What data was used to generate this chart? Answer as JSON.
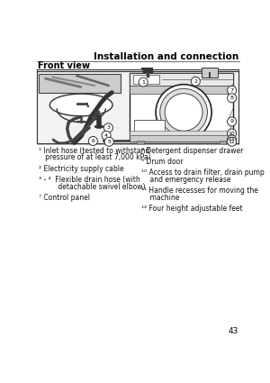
{
  "title": "Installation and connection",
  "subtitle": "Front view",
  "page_number": "43",
  "bg_color": "#ffffff",
  "title_fontsize": 7.5,
  "subtitle_fontsize": 7.0,
  "body_fontsize": 5.5,
  "left_col": [
    [
      "¹ Inlet hose (tested to withstand",
      "   pressure of at least 7,000 kPa)"
    ],
    [
      "² Electricity supply cable"
    ],
    [
      "³ - ⁴  Flexible drain hose (with",
      "         detachable swivel elbow)"
    ],
    [
      "⁷ Control panel"
    ]
  ],
  "right_col": [
    [
      "⁸ Detergent dispenser drawer"
    ],
    [
      "⁹ Drum door"
    ],
    [
      "¹⁰ Access to drain filter, drain pump",
      "    and emergency release"
    ],
    [
      "¹¹ Handle recesses for moving the",
      "    machine"
    ],
    [
      "¹² Four height adjustable feet"
    ]
  ],
  "diagram_bg": "#f2f2f2",
  "wm_color": "#ffffff",
  "wm_top_color": "#e8e8e8",
  "wm_ctrl_color": "#c8c8c8",
  "inset_color": "#cccccc"
}
